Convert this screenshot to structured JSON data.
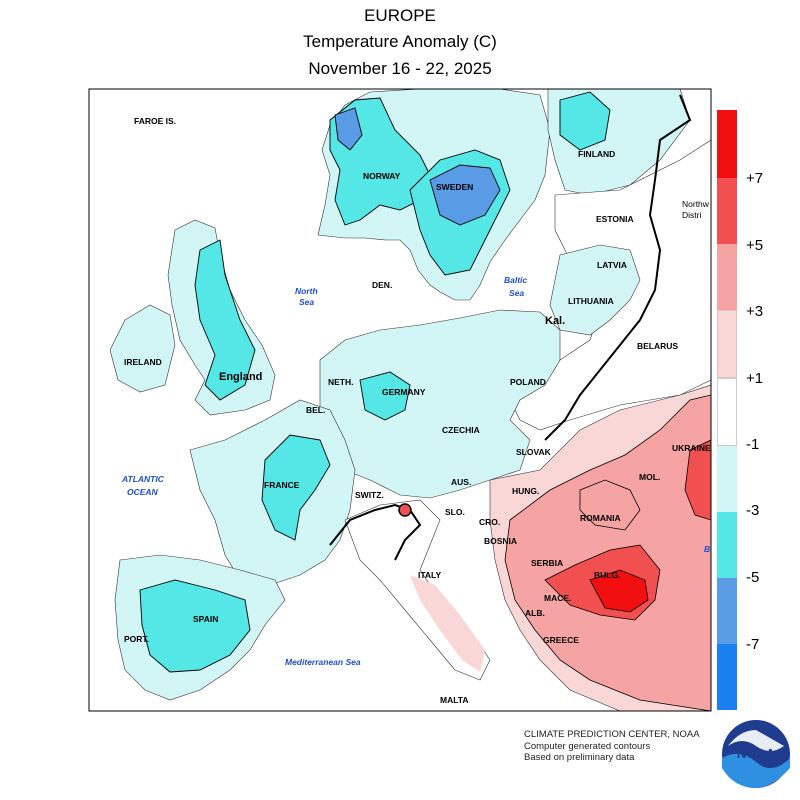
{
  "header": {
    "region": "EUROPE",
    "variable": "Temperature Anomaly (C)",
    "period": "November 16 - 22, 2025"
  },
  "legend": {
    "labels": [
      "+7",
      "+5",
      "+3",
      "+1",
      "-1",
      "-3",
      "-5",
      "-7"
    ],
    "colors": [
      "#f20f0f",
      "#f25050",
      "#f5a3a3",
      "#fad7d7",
      "#ffffff",
      "#d2f5f5",
      "#55e6e6",
      "#5a9be6",
      "#1a80f0"
    ]
  },
  "labels": {
    "faroe": "FAROE IS.",
    "norway": "NORWAY",
    "sweden": "SWEDEN",
    "finland": "FINLAND",
    "northwest": "Northw",
    "district": "Distri",
    "estonia": "ESTONIA",
    "latvia": "LATVIA",
    "lithuania": "LITHUANIA",
    "kal": "Kal.",
    "belarus": "BELARUS",
    "ukraine": "UKRAINE",
    "mol": "MOL.",
    "romania": "ROMANIA",
    "bulg": "BULG.",
    "serbia": "SERBIA",
    "bosnia": "BOSNIA",
    "cro": "CRO.",
    "slo": "SLO.",
    "hung": "HUNG.",
    "slovak": "SLOVAK",
    "aus": "AUS.",
    "czechia": "CZECHIA",
    "poland": "POLAND",
    "germany": "GERMANY",
    "den": "DEN.",
    "neth": "NETH.",
    "bel": "BEL.",
    "england": "England",
    "ireland": "IRELAND",
    "france": "FRANCE",
    "switz": "SWITZ.",
    "italy": "ITALY",
    "spain": "SPAIN",
    "port": "PORT.",
    "mace": "MACE.",
    "alb": "ALB.",
    "greece": "GREECE",
    "malta": "MALTA",
    "b": "B"
  },
  "seas": {
    "north1": "North",
    "north2": "Sea",
    "baltic1": "Baltic",
    "baltic2": "Sea",
    "atlantic1": "ATLANTIC",
    "atlantic2": "OCEAN",
    "med": "Mediterranean Sea"
  },
  "credits": {
    "line1": "CLIMATE PREDICTION CENTER, NOAA",
    "line2": "Computer generated contours",
    "line3": "Based on preliminary data"
  },
  "logo": {
    "text": "NOAA"
  }
}
